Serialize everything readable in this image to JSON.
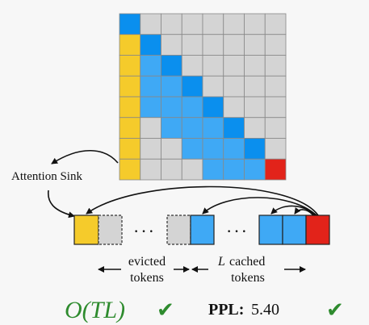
{
  "colors": {
    "sink": "#f5cb2b",
    "window": "#3fa9f5",
    "window_dark": "#0a8fee",
    "evicted": "#d4d4d4",
    "current": "#e2231a",
    "check": "#2e8b2e",
    "complexity": "#2e8b2e"
  },
  "matrix": {
    "size": 8,
    "window_size": 4
  },
  "labels": {
    "attention_sink": "Attention Sink",
    "dots": "· · ·",
    "evicted_line1": "evicted",
    "evicted_line2": "tokens",
    "cached_L": "L",
    "cached_line1": "cached",
    "cached_line2": "tokens"
  },
  "footer": {
    "complexity": "O(TL)",
    "ppl_label": "PPL:",
    "ppl_value": "5.40",
    "check": "✔"
  }
}
